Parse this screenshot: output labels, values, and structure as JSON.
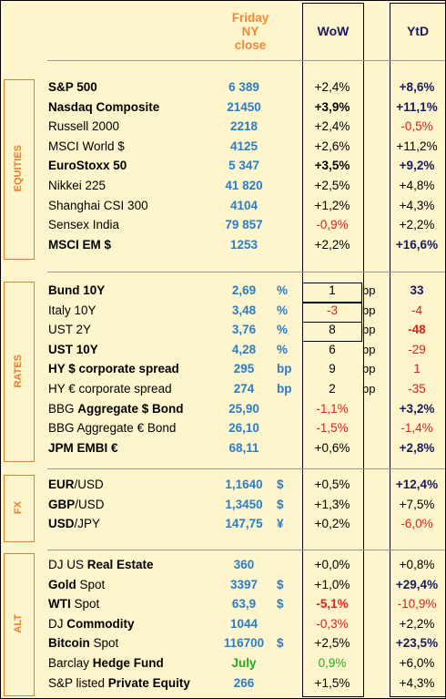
{
  "header": {
    "date_label": [
      "Friday",
      "NY",
      "close"
    ],
    "wow": "WoW",
    "ytd": "YtD"
  },
  "sections": [
    {
      "label": "EQUITIES",
      "rows": [
        {
          "name": "S&P 500",
          "bold": true,
          "value": "6 389",
          "wow": "+2,4%",
          "ytd": "+8,6%",
          "ytd_bold": true
        },
        {
          "name": "Nasdaq Composite",
          "bold": true,
          "value": "21450",
          "wow": "+3,9%",
          "wow_bold": true,
          "ytd": "+11,1%",
          "ytd_bold": true
        },
        {
          "name": "Russell 2000",
          "value": "2218",
          "wow": "+2,4%",
          "ytd": "-0,5%",
          "ytd_neg": true
        },
        {
          "name": "MSCI World $",
          "value": "4125",
          "wow": "+2,6%",
          "ytd": "+11,2%"
        },
        {
          "name": "EuroStoxx 50",
          "bold": true,
          "value": "5 347",
          "wow": "+3,5%",
          "wow_bold": true,
          "ytd": "+9,2%",
          "ytd_bold": true
        },
        {
          "name": "Nikkei 225",
          "value": "41 820",
          "wow": "+2,5%",
          "ytd": "+4,8%"
        },
        {
          "name": "Shanghai CSI 300",
          "value": "4104",
          "wow": "+1,2%",
          "ytd": "+4,3%"
        },
        {
          "name": "Sensex India",
          "value": "79 857",
          "wow": "-0,9%",
          "wow_neg": true,
          "ytd": "+2,2%"
        },
        {
          "name": "MSCI EM $",
          "bold": true,
          "value": "1253",
          "wow": "+2,2%",
          "ytd": "+16,6%",
          "ytd_bold": true
        }
      ]
    },
    {
      "label": "RATES",
      "rows": [
        {
          "name": "Bund 10Y",
          "bold": true,
          "value": "2,69",
          "unit": "%",
          "wow": "1",
          "bp": "bp",
          "ytd": "33",
          "ytd_bold": true,
          "box": true
        },
        {
          "name": "Italy 10Y",
          "value": "3,48",
          "unit": "%",
          "wow": "-3",
          "wow_neg": true,
          "bp": "bp",
          "ytd": "-4",
          "ytd_neg": true,
          "box": true
        },
        {
          "name": "UST 2Y",
          "value": "3,76",
          "unit": "%",
          "wow": "8",
          "bp": "bp",
          "ytd": "-48",
          "ytd_neg": true,
          "ytd_bold": true,
          "box": true
        },
        {
          "name": "UST 10Y",
          "bold": true,
          "value": "4,28",
          "unit": "%",
          "wow": "6",
          "bp": "bp",
          "ytd": "-29",
          "ytd_neg": true
        },
        {
          "name": "HY $ corporate spread",
          "bold": true,
          "value": "295",
          "unit": "bp",
          "wow": "9",
          "bp": "bp",
          "ytd": "1",
          "ytd_neg": true
        },
        {
          "name": "HY € corporate spread",
          "value": "274",
          "unit": "bp",
          "wow": "2",
          "bp": "bp",
          "ytd": "-35",
          "ytd_neg": true
        },
        {
          "name_pre": "BBG ",
          "name_bold": "Aggregate $ Bond",
          "value": "25,90",
          "wow": "-1,1%",
          "wow_neg": true,
          "ytd": "+3,2%",
          "ytd_bold": true
        },
        {
          "name": "BBG Aggregate € Bond",
          "value": "26,10",
          "wow": "-1,5%",
          "wow_neg": true,
          "ytd": "-1,4%",
          "ytd_neg": true
        },
        {
          "name": "JPM EMBI  €",
          "bold": true,
          "value": "68,11",
          "wow": "+0,6%",
          "ytd": "+2,8%",
          "ytd_bold": true
        }
      ]
    },
    {
      "label": "FX",
      "rows": [
        {
          "name_bold": "EUR",
          "name_post": "/USD",
          "value": "1,1640",
          "unit": "$",
          "wow": "+0,5%",
          "ytd": "+12,4%",
          "ytd_bold": true
        },
        {
          "name_bold": "GBP",
          "name_post": "/USD",
          "value": "1,3450",
          "unit": "$",
          "wow": "+1,3%",
          "ytd": "+7,5%"
        },
        {
          "name_bold": "USD",
          "name_post": "/JPY",
          "value": "147,75",
          "unit": "¥",
          "wow": "+0,2%",
          "ytd": "-6,0%",
          "ytd_neg": true
        }
      ]
    },
    {
      "label": "ALT",
      "rows": [
        {
          "name_pre": "DJ US ",
          "name_bold": "Real Estate",
          "value": "360",
          "wow": "+0,0%",
          "ytd": "+0,8%"
        },
        {
          "name_bold": "Gold",
          "name_post": " Spot",
          "value": "3397",
          "unit": "$",
          "wow": "+1,0%",
          "ytd": "+29,4%",
          "ytd_bold": true
        },
        {
          "name_bold": "WTI",
          "name_post": " Spot",
          "value": "63,9",
          "unit": "$",
          "wow": "-5,1%",
          "wow_neg": true,
          "wow_bold": true,
          "ytd": "-10,9%",
          "ytd_neg": true
        },
        {
          "name_pre": "DJ ",
          "name_bold": "Commodity",
          "value": "1044",
          "wow": "-0,3%",
          "wow_neg": true,
          "ytd": "+2,2%"
        },
        {
          "name_bold": "Bitcoin",
          "name_post": " Spot",
          "value": "116700",
          "unit": "$",
          "wow": "+2,5%",
          "ytd": "+23,5%",
          "ytd_bold": true
        },
        {
          "name_pre": "Barclay ",
          "name_bold": "Hedge Fund",
          "value": "July",
          "value_green": true,
          "wow": "0,9%",
          "wow_green": true,
          "ytd": "+6,0%"
        },
        {
          "name_pre": "S&P listed ",
          "name_bold": "Private Equity",
          "value": "266",
          "wow": "+1,5%",
          "ytd": "+4,3%"
        }
      ]
    }
  ]
}
